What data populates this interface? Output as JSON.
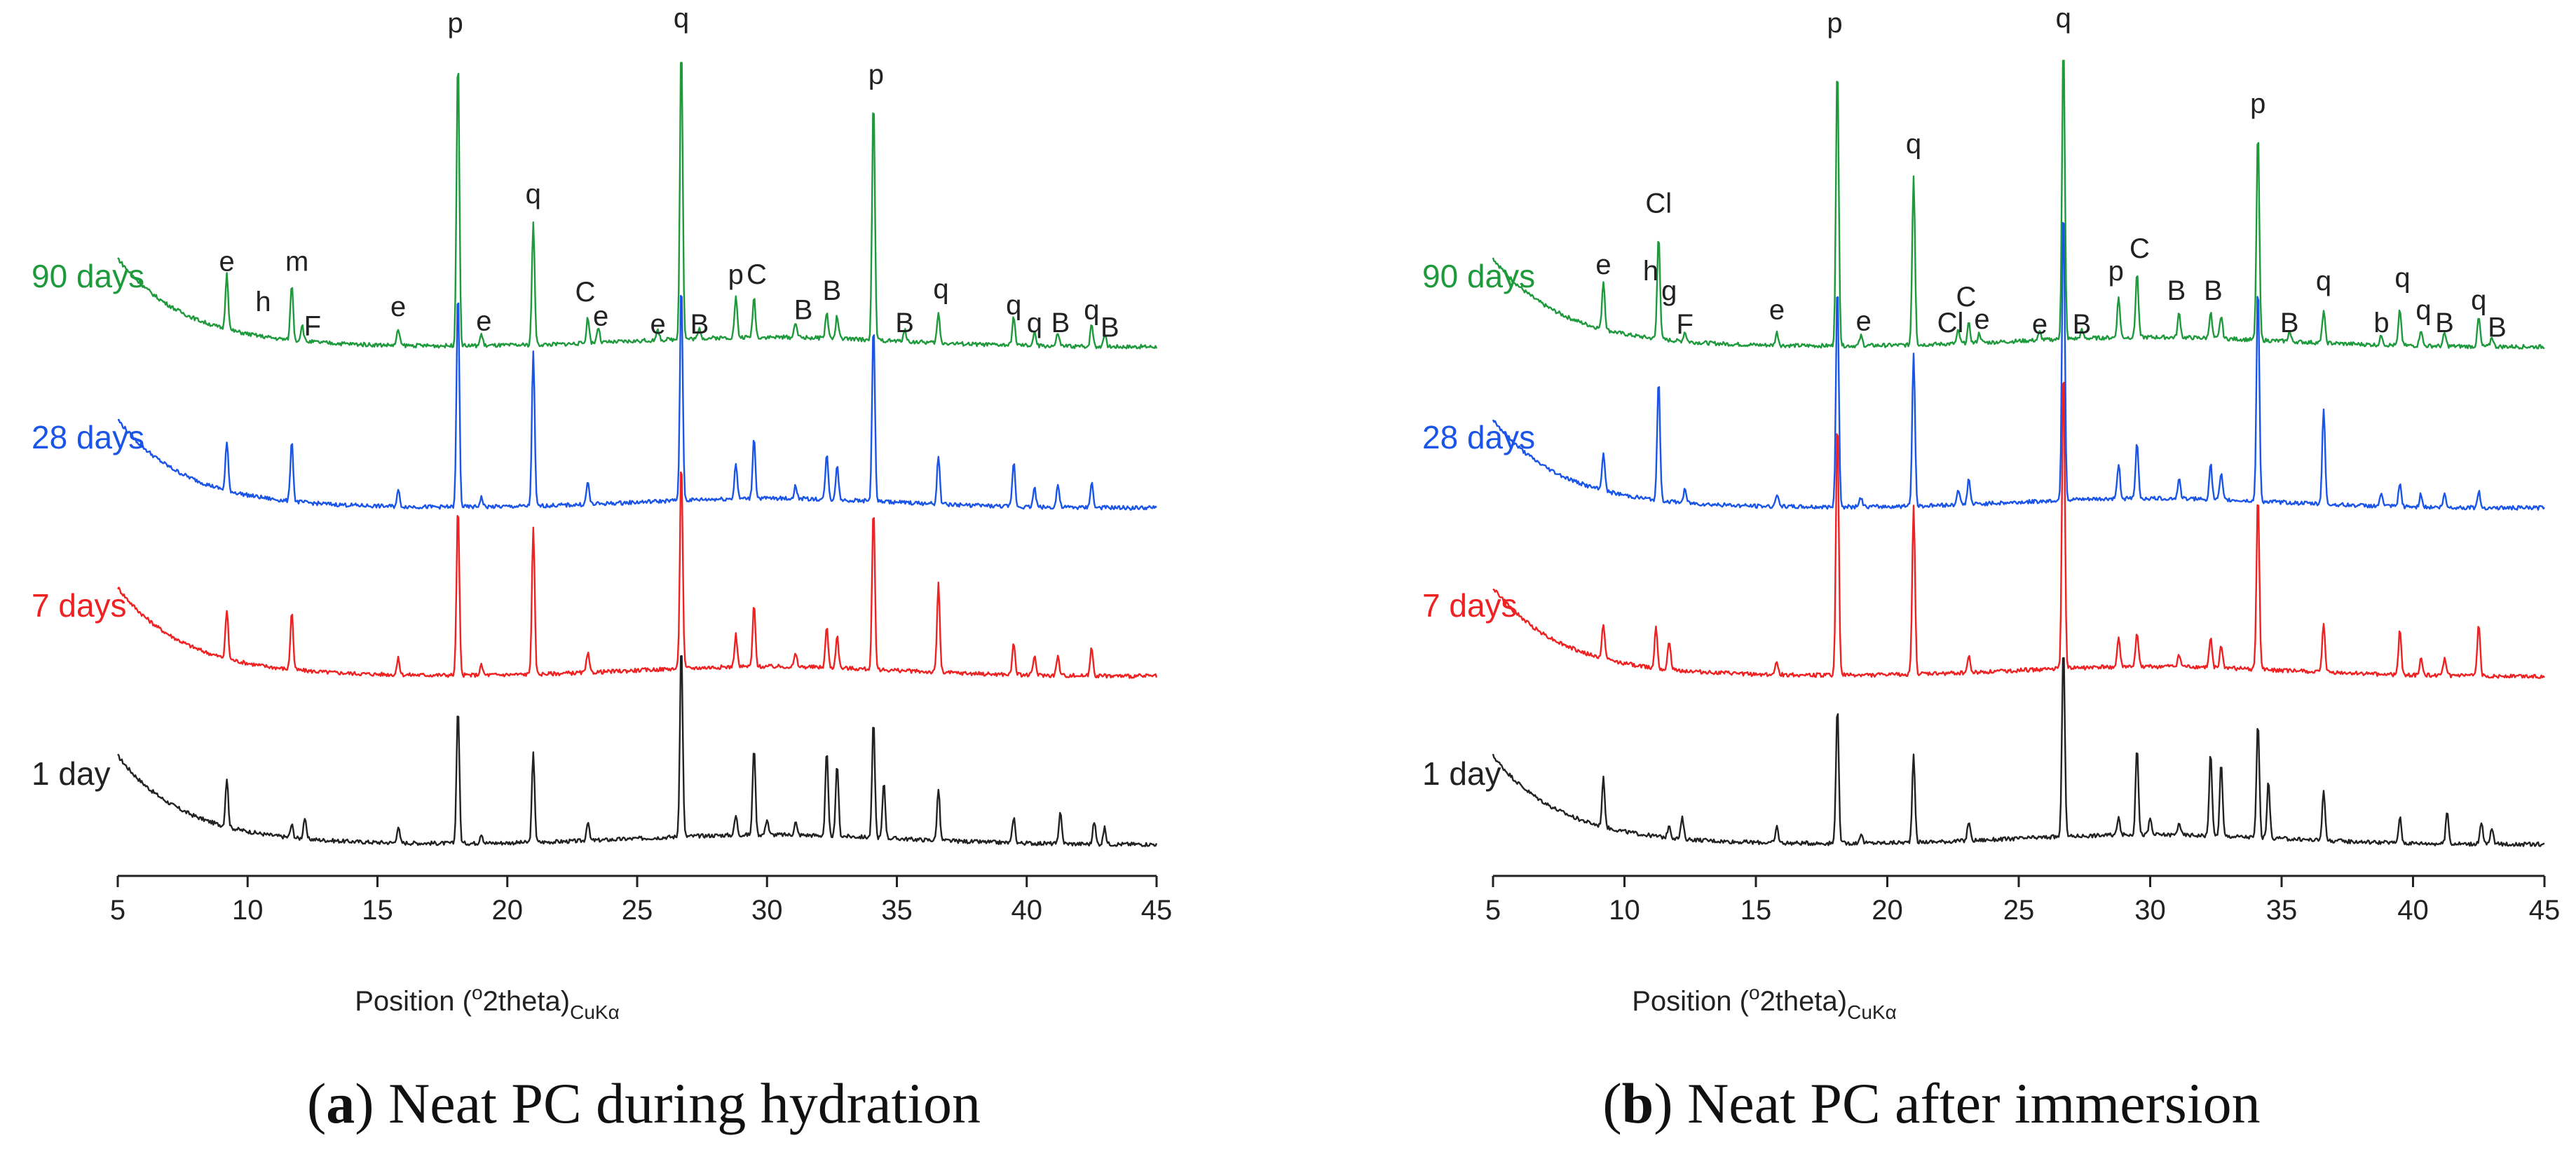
{
  "chart_data": [
    {
      "type": "line",
      "panel_letter": "a",
      "title": "Neat PC during hydration",
      "caption_open": "(",
      "caption_close": ")",
      "xlabel": "Position (°2theta)",
      "xlabel_main": "Position (",
      "xlabel_sup": "o",
      "xlabel_mid": "2theta)",
      "xlabel_sub": "CuKα",
      "xlim": [
        5,
        45
      ],
      "xticks": [
        5,
        10,
        15,
        20,
        25,
        30,
        35,
        40,
        45
      ],
      "ylabel": "",
      "grid": false,
      "series": [
        {
          "name": "1 day",
          "color": "#222222",
          "peaks": [
            [
              9.2,
              0.3
            ],
            [
              11.7,
              0.08
            ],
            [
              12.2,
              0.13
            ],
            [
              15.8,
              0.1
            ],
            [
              18.1,
              0.85
            ],
            [
              19.0,
              0.06
            ],
            [
              21.0,
              0.55
            ],
            [
              23.1,
              0.12
            ],
            [
              26.7,
              1.2
            ],
            [
              28.8,
              0.12
            ],
            [
              29.5,
              0.55
            ],
            [
              30.0,
              0.1
            ],
            [
              31.1,
              0.08
            ],
            [
              32.3,
              0.52
            ],
            [
              32.7,
              0.45
            ],
            [
              34.1,
              0.72
            ],
            [
              34.5,
              0.35
            ],
            [
              36.6,
              0.32
            ],
            [
              39.5,
              0.16
            ],
            [
              41.3,
              0.2
            ],
            [
              42.6,
              0.14
            ],
            [
              43.0,
              0.1
            ]
          ]
        },
        {
          "name": "7 days",
          "color": "#ee2222",
          "peaks": [
            [
              9.2,
              0.3
            ],
            [
              11.7,
              0.36
            ],
            [
              15.8,
              0.1
            ],
            [
              18.1,
              1.05
            ],
            [
              19.0,
              0.06
            ],
            [
              21.0,
              0.9
            ],
            [
              23.1,
              0.12
            ],
            [
              26.7,
              1.3
            ],
            [
              28.8,
              0.2
            ],
            [
              29.5,
              0.38
            ],
            [
              31.1,
              0.08
            ],
            [
              32.3,
              0.25
            ],
            [
              32.7,
              0.2
            ],
            [
              34.1,
              1.0
            ],
            [
              36.6,
              0.55
            ],
            [
              39.5,
              0.2
            ],
            [
              40.3,
              0.12
            ],
            [
              41.2,
              0.12
            ],
            [
              42.5,
              0.18
            ]
          ]
        },
        {
          "name": "28 days",
          "color": "#1a55e8",
          "peaks": [
            [
              9.2,
              0.3
            ],
            [
              11.7,
              0.38
            ],
            [
              15.8,
              0.1
            ],
            [
              18.1,
              1.35
            ],
            [
              19.0,
              0.06
            ],
            [
              21.0,
              0.95
            ],
            [
              23.1,
              0.14
            ],
            [
              26.7,
              1.35
            ],
            [
              28.8,
              0.22
            ],
            [
              29.5,
              0.38
            ],
            [
              31.1,
              0.08
            ],
            [
              32.3,
              0.28
            ],
            [
              32.7,
              0.22
            ],
            [
              34.1,
              1.1
            ],
            [
              36.6,
              0.3
            ],
            [
              39.5,
              0.28
            ],
            [
              40.3,
              0.12
            ],
            [
              41.2,
              0.14
            ],
            [
              42.5,
              0.16
            ]
          ]
        },
        {
          "name": "90 days",
          "color": "#1e9a3c",
          "peaks": [
            [
              9.2,
              0.35
            ],
            [
              11.7,
              0.35
            ],
            [
              12.1,
              0.1
            ],
            [
              15.8,
              0.1
            ],
            [
              18.1,
              1.8
            ],
            [
              19.0,
              0.07
            ],
            [
              21.0,
              0.75
            ],
            [
              23.1,
              0.16
            ],
            [
              23.5,
              0.1
            ],
            [
              25.8,
              0.06
            ],
            [
              26.7,
              1.85
            ],
            [
              27.4,
              0.06
            ],
            [
              28.8,
              0.25
            ],
            [
              29.5,
              0.25
            ],
            [
              31.1,
              0.1
            ],
            [
              32.3,
              0.16
            ],
            [
              32.7,
              0.14
            ],
            [
              34.1,
              1.5
            ],
            [
              35.3,
              0.07
            ],
            [
              36.6,
              0.18
            ],
            [
              39.5,
              0.18
            ],
            [
              40.3,
              0.08
            ],
            [
              41.2,
              0.08
            ],
            [
              42.5,
              0.14
            ],
            [
              43.0,
              0.08
            ]
          ]
        }
      ],
      "annotations": [
        {
          "text": "e",
          "x": 9.2,
          "y": 0.42
        },
        {
          "text": "h",
          "x": 10.6,
          "y": 0.17
        },
        {
          "text": "m",
          "x": 11.9,
          "y": 0.42
        },
        {
          "text": "F",
          "x": 12.5,
          "y": 0.02
        },
        {
          "text": "e",
          "x": 15.8,
          "y": 0.14
        },
        {
          "text": "p",
          "x": 18.0,
          "y": 1.9
        },
        {
          "text": "e",
          "x": 19.1,
          "y": 0.05
        },
        {
          "text": "q",
          "x": 21.0,
          "y": 0.84
        },
        {
          "text": "C",
          "x": 23.0,
          "y": 0.23
        },
        {
          "text": "e",
          "x": 23.6,
          "y": 0.08
        },
        {
          "text": "e",
          "x": 25.8,
          "y": 0.03
        },
        {
          "text": "q",
          "x": 26.7,
          "y": 1.93
        },
        {
          "text": "B",
          "x": 27.4,
          "y": 0.03
        },
        {
          "text": "p",
          "x": 28.8,
          "y": 0.34
        },
        {
          "text": "C",
          "x": 29.6,
          "y": 0.34
        },
        {
          "text": "B",
          "x": 31.4,
          "y": 0.12
        },
        {
          "text": "B",
          "x": 32.5,
          "y": 0.24
        },
        {
          "text": "p",
          "x": 34.2,
          "y": 1.58
        },
        {
          "text": "B",
          "x": 35.3,
          "y": 0.04
        },
        {
          "text": "q",
          "x": 36.7,
          "y": 0.25
        },
        {
          "text": "q",
          "x": 39.5,
          "y": 0.15
        },
        {
          "text": "q",
          "x": 40.3,
          "y": 0.04
        },
        {
          "text": "B",
          "x": 41.3,
          "y": 0.04
        },
        {
          "text": "q",
          "x": 42.5,
          "y": 0.12
        },
        {
          "text": "B",
          "x": 43.2,
          "y": 0.01
        }
      ]
    },
    {
      "type": "line",
      "panel_letter": "b",
      "title": "Neat PC after immersion",
      "caption_open": "(",
      "caption_close": ")",
      "xlabel": "Position (°2theta)",
      "xlabel_main": "Position (",
      "xlabel_sup": "o",
      "xlabel_mid": "2theta)",
      "xlabel_sub": "CuKα",
      "xlim": [
        5,
        45
      ],
      "xticks": [
        5,
        10,
        15,
        20,
        25,
        30,
        35,
        40,
        45
      ],
      "ylabel": "",
      "grid": false,
      "series": [
        {
          "name": "1 day",
          "color": "#222222",
          "peaks": [
            [
              9.2,
              0.3
            ],
            [
              11.7,
              0.08
            ],
            [
              12.2,
              0.13
            ],
            [
              15.8,
              0.1
            ],
            [
              18.1,
              0.85
            ],
            [
              19.0,
              0.06
            ],
            [
              21.0,
              0.55
            ],
            [
              23.1,
              0.12
            ],
            [
              26.7,
              1.2
            ],
            [
              28.8,
              0.12
            ],
            [
              29.5,
              0.55
            ],
            [
              30.0,
              0.1
            ],
            [
              31.1,
              0.08
            ],
            [
              32.3,
              0.52
            ],
            [
              32.7,
              0.45
            ],
            [
              34.1,
              0.72
            ],
            [
              34.5,
              0.35
            ],
            [
              36.6,
              0.32
            ],
            [
              39.5,
              0.16
            ],
            [
              41.3,
              0.2
            ],
            [
              42.6,
              0.14
            ],
            [
              43.0,
              0.1
            ]
          ]
        },
        {
          "name": "7 days",
          "color": "#ee2222",
          "peaks": [
            [
              9.2,
              0.22
            ],
            [
              11.2,
              0.26
            ],
            [
              11.7,
              0.18
            ],
            [
              15.8,
              0.08
            ],
            [
              18.1,
              1.6
            ],
            [
              21.0,
              1.05
            ],
            [
              23.1,
              0.1
            ],
            [
              26.7,
              1.9
            ],
            [
              28.8,
              0.18
            ],
            [
              29.5,
              0.2
            ],
            [
              31.1,
              0.08
            ],
            [
              32.3,
              0.18
            ],
            [
              32.7,
              0.14
            ],
            [
              34.1,
              1.1
            ],
            [
              36.6,
              0.3
            ],
            [
              39.5,
              0.28
            ],
            [
              40.3,
              0.1
            ],
            [
              41.2,
              0.1
            ],
            [
              42.5,
              0.32
            ]
          ]
        },
        {
          "name": "28 days",
          "color": "#1a55e8",
          "peaks": [
            [
              9.2,
              0.24
            ],
            [
              11.3,
              0.75
            ],
            [
              12.3,
              0.08
            ],
            [
              15.8,
              0.08
            ],
            [
              18.1,
              1.4
            ],
            [
              19.0,
              0.06
            ],
            [
              21.0,
              0.95
            ],
            [
              22.7,
              0.1
            ],
            [
              23.1,
              0.16
            ],
            [
              26.7,
              1.85
            ],
            [
              28.8,
              0.22
            ],
            [
              29.5,
              0.35
            ],
            [
              31.1,
              0.12
            ],
            [
              32.3,
              0.22
            ],
            [
              32.7,
              0.16
            ],
            [
              34.1,
              1.35
            ],
            [
              36.6,
              0.6
            ],
            [
              38.8,
              0.08
            ],
            [
              39.5,
              0.14
            ],
            [
              40.3,
              0.08
            ],
            [
              41.2,
              0.08
            ],
            [
              42.5,
              0.1
            ]
          ]
        },
        {
          "name": "90 days",
          "color": "#1e9a3c",
          "peaks": [
            [
              9.2,
              0.3
            ],
            [
              11.3,
              0.65
            ],
            [
              12.3,
              0.06
            ],
            [
              15.8,
              0.08
            ],
            [
              18.1,
              1.75
            ],
            [
              19.0,
              0.06
            ],
            [
              21.0,
              1.05
            ],
            [
              22.7,
              0.08
            ],
            [
              23.1,
              0.12
            ],
            [
              23.5,
              0.06
            ],
            [
              25.8,
              0.05
            ],
            [
              26.7,
              1.85
            ],
            [
              27.4,
              0.05
            ],
            [
              28.8,
              0.25
            ],
            [
              29.5,
              0.4
            ],
            [
              31.1,
              0.15
            ],
            [
              32.3,
              0.16
            ],
            [
              32.7,
              0.14
            ],
            [
              34.1,
              1.3
            ],
            [
              35.3,
              0.06
            ],
            [
              36.6,
              0.2
            ],
            [
              38.8,
              0.06
            ],
            [
              39.5,
              0.22
            ],
            [
              40.3,
              0.1
            ],
            [
              41.2,
              0.08
            ],
            [
              42.5,
              0.18
            ],
            [
              43.0,
              0.06
            ]
          ]
        }
      ],
      "annotations": [
        {
          "text": "e",
          "x": 9.2,
          "y": 0.4
        },
        {
          "text": "Cl",
          "x": 11.3,
          "y": 0.78
        },
        {
          "text": "F",
          "x": 12.3,
          "y": 0.03
        },
        {
          "text": "e",
          "x": 15.8,
          "y": 0.12
        },
        {
          "text": "e",
          "x": 19.1,
          "y": 0.05
        },
        {
          "text": "p",
          "x": 18.0,
          "y": 1.9
        },
        {
          "text": "q",
          "x": 21.0,
          "y": 1.15
        },
        {
          "text": "C",
          "x": 23.0,
          "y": 0.2
        },
        {
          "text": "Cl",
          "x": 22.4,
          "y": 0.04
        },
        {
          "text": "e",
          "x": 23.6,
          "y": 0.06
        },
        {
          "text": "e",
          "x": 25.8,
          "y": 0.03
        },
        {
          "text": "q",
          "x": 26.7,
          "y": 1.93
        },
        {
          "text": "B",
          "x": 27.4,
          "y": 0.03
        },
        {
          "text": "p",
          "x": 28.7,
          "y": 0.36
        },
        {
          "text": "C",
          "x": 29.6,
          "y": 0.5
        },
        {
          "text": "B",
          "x": 31.0,
          "y": 0.24
        },
        {
          "text": "B",
          "x": 32.4,
          "y": 0.24
        },
        {
          "text": "p",
          "x": 34.1,
          "y": 1.4
        },
        {
          "text": "B",
          "x": 35.3,
          "y": 0.04
        },
        {
          "text": "q",
          "x": 36.6,
          "y": 0.3
        },
        {
          "text": "b",
          "x": 38.8,
          "y": 0.04
        },
        {
          "text": "q",
          "x": 39.6,
          "y": 0.32
        },
        {
          "text": "q",
          "x": 40.4,
          "y": 0.12
        },
        {
          "text": "B",
          "x": 41.2,
          "y": 0.04
        },
        {
          "text": "q",
          "x": 42.5,
          "y": 0.18
        },
        {
          "text": "B",
          "x": 43.2,
          "y": 0.01
        },
        {
          "text": "h",
          "x": 11.0,
          "y": 0.36
        },
        {
          "text": "g",
          "x": 11.7,
          "y": 0.24
        }
      ]
    }
  ]
}
